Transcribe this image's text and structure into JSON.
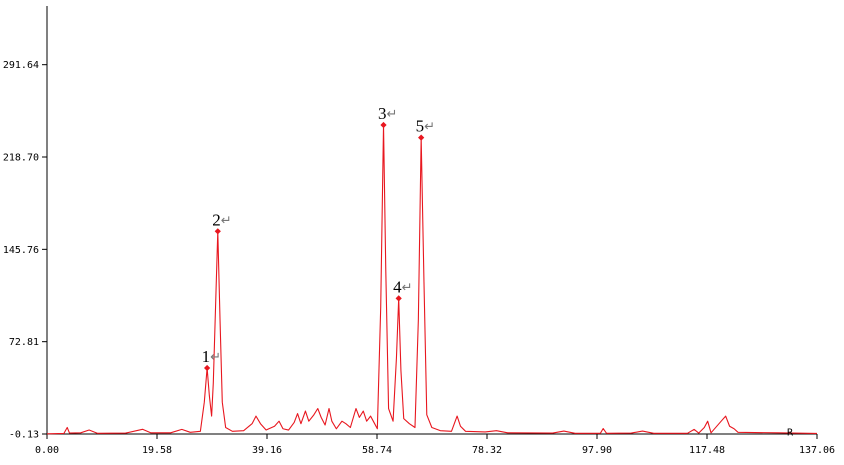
{
  "chart_data": {
    "type": "line",
    "title": "",
    "xlabel": "",
    "ylabel": "",
    "xlim": [
      0,
      137.06
    ],
    "ylim": [
      -0.13,
      338
    ],
    "xticks": [
      "0.00",
      "19.58",
      "39.16",
      "58.74",
      "78.32",
      "97.90",
      "117.48",
      "137.06"
    ],
    "yticks": [
      "-0.13",
      "72.81",
      "145.76",
      "218.70",
      "291.64"
    ],
    "grid": false,
    "line_color": "#e8171f",
    "axis_color": "#000000",
    "series": [
      {
        "points": [
          [
            0.0,
            0.0
          ],
          [
            3.0,
            0.3
          ],
          [
            3.6,
            5.0
          ],
          [
            4.0,
            0.6
          ],
          [
            6.0,
            0.8
          ],
          [
            7.5,
            3.0
          ],
          [
            9.0,
            0.4
          ],
          [
            14.0,
            0.6
          ],
          [
            17.0,
            3.6
          ],
          [
            18.5,
            0.8
          ],
          [
            22.0,
            0.8
          ],
          [
            24.0,
            3.5
          ],
          [
            25.5,
            1.2
          ],
          [
            27.3,
            2.0
          ],
          [
            28.0,
            25.0
          ],
          [
            28.5,
            52.0
          ],
          [
            28.9,
            30.0
          ],
          [
            29.3,
            14.0
          ],
          [
            29.6,
            40.0
          ],
          [
            30.0,
            100.0
          ],
          [
            30.4,
            160.0
          ],
          [
            30.8,
            90.0
          ],
          [
            31.2,
            25.0
          ],
          [
            31.8,
            5.0
          ],
          [
            33.0,
            2.0
          ],
          [
            35.0,
            2.5
          ],
          [
            36.5,
            8.0
          ],
          [
            37.2,
            14.0
          ],
          [
            38.0,
            8.0
          ],
          [
            39.0,
            3.0
          ],
          [
            40.5,
            6.0
          ],
          [
            41.3,
            10.0
          ],
          [
            42.0,
            4.0
          ],
          [
            43.0,
            3.0
          ],
          [
            44.0,
            9.0
          ],
          [
            44.6,
            16.0
          ],
          [
            45.2,
            8.0
          ],
          [
            46.0,
            18.0
          ],
          [
            46.6,
            10.0
          ],
          [
            47.5,
            15.0
          ],
          [
            48.2,
            20.0
          ],
          [
            48.8,
            13.0
          ],
          [
            49.5,
            7.0
          ],
          [
            50.2,
            20.0
          ],
          [
            50.7,
            10.0
          ],
          [
            51.5,
            4.0
          ],
          [
            52.5,
            10.0
          ],
          [
            53.2,
            8.0
          ],
          [
            54.0,
            5.0
          ],
          [
            55.0,
            20.0
          ],
          [
            55.6,
            13.0
          ],
          [
            56.3,
            18.0
          ],
          [
            56.9,
            10.0
          ],
          [
            57.6,
            14.0
          ],
          [
            58.2,
            9.0
          ],
          [
            58.8,
            4.0
          ],
          [
            59.4,
            100.0
          ],
          [
            59.9,
            244.0
          ],
          [
            60.3,
            130.0
          ],
          [
            60.8,
            20.0
          ],
          [
            61.6,
            10.0
          ],
          [
            62.2,
            60.0
          ],
          [
            62.6,
            107.0
          ],
          [
            63.0,
            50.0
          ],
          [
            63.5,
            12.0
          ],
          [
            64.5,
            8.0
          ],
          [
            65.5,
            5.0
          ],
          [
            66.1,
            90.0
          ],
          [
            66.6,
            234.0
          ],
          [
            67.1,
            120.0
          ],
          [
            67.6,
            15.0
          ],
          [
            68.5,
            5.0
          ],
          [
            70.0,
            2.5
          ],
          [
            72.0,
            2.0
          ],
          [
            73.0,
            14.0
          ],
          [
            73.6,
            6.0
          ],
          [
            74.5,
            2.0
          ],
          [
            78.0,
            1.5
          ],
          [
            80.0,
            2.5
          ],
          [
            82.0,
            0.8
          ],
          [
            90.0,
            0.6
          ],
          [
            92.0,
            2.2
          ],
          [
            94.0,
            0.4
          ],
          [
            98.5,
            0.4
          ],
          [
            99.0,
            4.2
          ],
          [
            99.6,
            0.4
          ],
          [
            104.0,
            0.6
          ],
          [
            106.0,
            2.2
          ],
          [
            108.0,
            0.4
          ],
          [
            114.0,
            0.4
          ],
          [
            115.2,
            3.5
          ],
          [
            116.0,
            0.6
          ],
          [
            117.0,
            5.0
          ],
          [
            117.6,
            10.0
          ],
          [
            118.2,
            0.8
          ],
          [
            120.0,
            10.0
          ],
          [
            120.8,
            14.0
          ],
          [
            121.5,
            6.0
          ],
          [
            122.3,
            4.0
          ],
          [
            123.0,
            1.2
          ],
          [
            130.0,
            0.8
          ],
          [
            135.5,
            0.4
          ],
          [
            137.06,
            0.3
          ]
        ]
      }
    ],
    "peaks": [
      {
        "label": "1",
        "x": 28.5,
        "y": 52.0
      },
      {
        "label": "2",
        "x": 30.4,
        "y": 160.0
      },
      {
        "label": "3",
        "x": 59.9,
        "y": 244.0
      },
      {
        "label": "4",
        "x": 62.6,
        "y": 107.0
      },
      {
        "label": "5",
        "x": 66.6,
        "y": 234.0
      }
    ],
    "peak_label_suffix": "↵",
    "end_marker": "R"
  }
}
